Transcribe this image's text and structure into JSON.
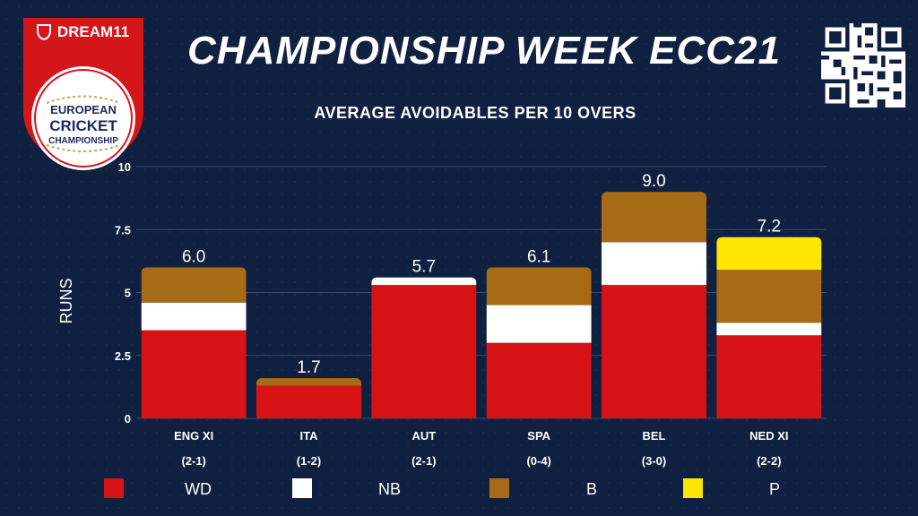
{
  "branding": {
    "sponsor": "DREAM11",
    "event_line1": "EUROPEAN",
    "event_line2": "CRICKET",
    "event_line3": "CHAMPIONSHIP"
  },
  "colors": {
    "background": "#102040",
    "WD": "#d81316",
    "NB": "#ffffff",
    "B": "#a66b14",
    "P": "#ffe600"
  },
  "chart_data": {
    "type": "bar",
    "stacked": true,
    "title": "CHAMPIONSHIP WEEK ECC21",
    "subtitle": "AVERAGE AVOIDABLES PER 10 OVERS",
    "xlabel": "",
    "ylabel": "RUNS",
    "ylim": [
      0,
      10
    ],
    "yticks": [
      "0",
      "2.5",
      "5",
      "7.5",
      "10"
    ],
    "grid": true,
    "legend_position": "bottom",
    "categories": [
      "ENG XI",
      "ITA",
      "AUT",
      "SPA",
      "BEL",
      "NED XI"
    ],
    "category_records": [
      "(2-1)",
      "(1-2)",
      "(2-1)",
      "(0-4)",
      "(3-0)",
      "(2-2)"
    ],
    "totals_labels": [
      "6.0",
      "1.7",
      "5.7",
      "6.1",
      "9.0",
      "7.2"
    ],
    "series": [
      {
        "name": "WD",
        "values": [
          3.5,
          1.3,
          5.3,
          3.0,
          5.3,
          3.3
        ]
      },
      {
        "name": "NB",
        "values": [
          1.1,
          0.0,
          0.3,
          1.5,
          1.7,
          0.5
        ]
      },
      {
        "name": "B",
        "values": [
          1.4,
          0.3,
          0.0,
          1.5,
          2.0,
          2.1
        ]
      },
      {
        "name": "P",
        "values": [
          0.0,
          0.0,
          0.0,
          0.0,
          0.0,
          1.3
        ]
      }
    ]
  },
  "legend": [
    {
      "label": "WD",
      "color": "#d81316"
    },
    {
      "label": "NB",
      "color": "#ffffff"
    },
    {
      "label": "B",
      "color": "#a66b14"
    },
    {
      "label": "P",
      "color": "#ffe600"
    }
  ]
}
